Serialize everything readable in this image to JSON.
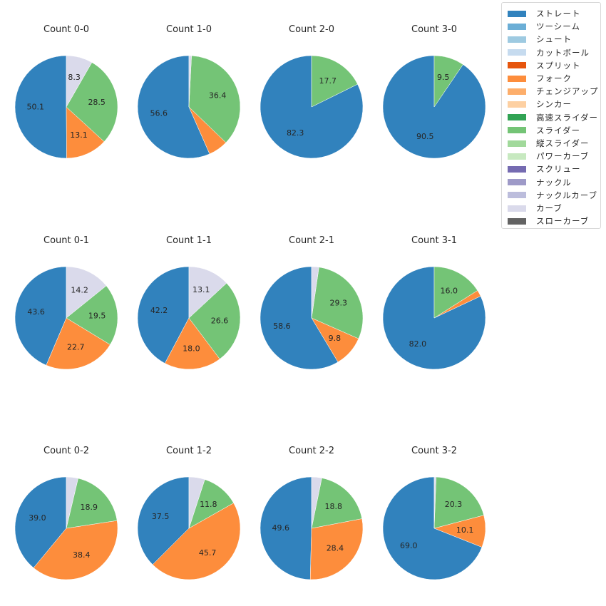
{
  "chart_data": {
    "type": "pie",
    "categories": [
      "ストレート",
      "ツーシーム",
      "シュート",
      "カットボール",
      "スプリット",
      "フォーク",
      "チェンジアップ",
      "シンカー",
      "高速スライダー",
      "スライダー",
      "縦スライダー",
      "パワーカーブ",
      "スクリュー",
      "ナックル",
      "ナックルカーブ",
      "カーブ",
      "スローカーブ"
    ],
    "colors": [
      "#3182bd",
      "#6baed6",
      "#9ecae1",
      "#c6dbef",
      "#e6550d",
      "#fd8d3c",
      "#fdae6b",
      "#fdd0a2",
      "#31a354",
      "#74c476",
      "#a1d99b",
      "#c7e9c0",
      "#756bb1",
      "#9e9ac8",
      "#bcbddc",
      "#dadaeb",
      "#636363"
    ],
    "legend_position": "top-right",
    "start_angle_deg": 90,
    "direction": "counterclockwise",
    "label_threshold": 8,
    "panels": [
      {
        "title": "Count 0-0",
        "slices": [
          {
            "category": "ストレート",
            "value": 50.1
          },
          {
            "category": "フォーク",
            "value": 13.1
          },
          {
            "category": "スライダー",
            "value": 28.5
          },
          {
            "category": "カーブ",
            "value": 8.3
          }
        ]
      },
      {
        "title": "Count 1-0",
        "slices": [
          {
            "category": "ストレート",
            "value": 56.6
          },
          {
            "category": "フォーク",
            "value": 6.2
          },
          {
            "category": "スライダー",
            "value": 36.4
          },
          {
            "category": "カーブ",
            "value": 0.8
          }
        ]
      },
      {
        "title": "Count 2-0",
        "slices": [
          {
            "category": "ストレート",
            "value": 82.3
          },
          {
            "category": "スライダー",
            "value": 17.7
          }
        ]
      },
      {
        "title": "Count 3-0",
        "slices": [
          {
            "category": "ストレート",
            "value": 90.5
          },
          {
            "category": "スライダー",
            "value": 9.5
          }
        ]
      },
      {
        "title": "Count 0-1",
        "slices": [
          {
            "category": "ストレート",
            "value": 43.6
          },
          {
            "category": "フォーク",
            "value": 22.7
          },
          {
            "category": "スライダー",
            "value": 19.5
          },
          {
            "category": "カーブ",
            "value": 14.2
          }
        ]
      },
      {
        "title": "Count 1-1",
        "slices": [
          {
            "category": "ストレート",
            "value": 42.2
          },
          {
            "category": "フォーク",
            "value": 18.0
          },
          {
            "category": "スライダー",
            "value": 26.6
          },
          {
            "category": "カーブ",
            "value": 13.1
          }
        ]
      },
      {
        "title": "Count 2-1",
        "slices": [
          {
            "category": "ストレート",
            "value": 58.6
          },
          {
            "category": "フォーク",
            "value": 9.8
          },
          {
            "category": "スライダー",
            "value": 29.3
          },
          {
            "category": "カーブ",
            "value": 2.3
          }
        ]
      },
      {
        "title": "Count 3-1",
        "slices": [
          {
            "category": "ストレート",
            "value": 82.0
          },
          {
            "category": "フォーク",
            "value": 2.0
          },
          {
            "category": "スライダー",
            "value": 16.0
          }
        ]
      },
      {
        "title": "Count 0-2",
        "slices": [
          {
            "category": "ストレート",
            "value": 39.0
          },
          {
            "category": "フォーク",
            "value": 38.4
          },
          {
            "category": "スライダー",
            "value": 18.9
          },
          {
            "category": "カーブ",
            "value": 3.7
          }
        ]
      },
      {
        "title": "Count 1-2",
        "slices": [
          {
            "category": "ストレート",
            "value": 37.5
          },
          {
            "category": "フォーク",
            "value": 45.7
          },
          {
            "category": "スライダー",
            "value": 11.8
          },
          {
            "category": "カーブ",
            "value": 5.0
          }
        ]
      },
      {
        "title": "Count 2-2",
        "slices": [
          {
            "category": "ストレート",
            "value": 49.6
          },
          {
            "category": "フォーク",
            "value": 28.4
          },
          {
            "category": "スライダー",
            "value": 18.8
          },
          {
            "category": "カーブ",
            "value": 3.2
          }
        ]
      },
      {
        "title": "Count 3-2",
        "slices": [
          {
            "category": "ストレート",
            "value": 69.0
          },
          {
            "category": "フォーク",
            "value": 10.1
          },
          {
            "category": "スライダー",
            "value": 20.3
          },
          {
            "category": "カーブ",
            "value": 0.6
          }
        ]
      }
    ]
  }
}
